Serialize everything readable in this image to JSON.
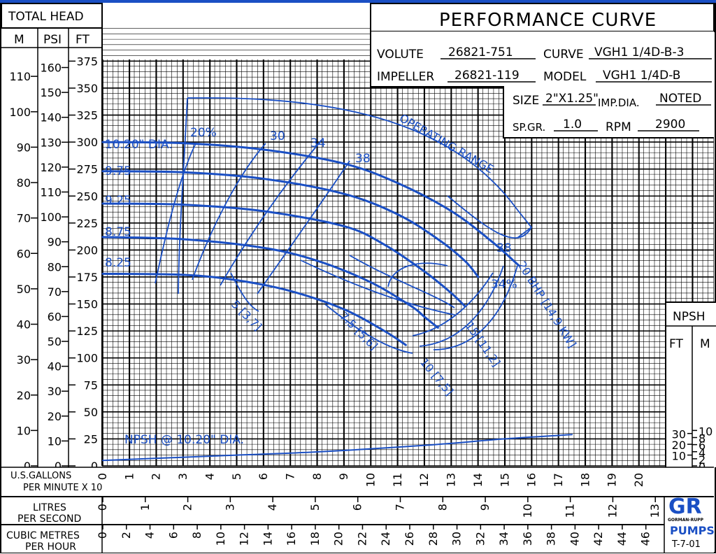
{
  "header": {
    "total_head": "TOTAL HEAD",
    "units": [
      "M",
      "PSI",
      "FT"
    ],
    "title": "PERFORMANCE CURVE",
    "volute_label": "VOLUTE",
    "volute": "26821-751",
    "curve_label": "CURVE",
    "curve": "VGH1 1/4D-B-3",
    "impeller_label": "IMPELLER",
    "impeller": "26821-119",
    "model_label": "MODEL",
    "model": "VGH1 1/4D-B",
    "size_label": "SIZE",
    "size": "2\"X1.25\"",
    "imp_dia_label": "IMP.DIA.",
    "imp_dia": "NOTED",
    "spgr_label": "SP.GR.",
    "spgr": "1.0",
    "rpm_label": "RPM",
    "rpm": "2900",
    "npsh_box": "NPSH",
    "npsh_units": [
      "FT",
      "M"
    ],
    "logo": "GR",
    "logo_sub": "GORMAN-RUPP",
    "logo_pumps": "PUMPS",
    "logo_code": "T-7-01"
  },
  "axes": {
    "gpm_label": "U.S.GALLONS\nPER MINUTE  X 10",
    "gpm_label_1": "U.S.GALLONS",
    "gpm_label_2": "PER MINUTE  X 10",
    "lps_label_1": "LITRES",
    "lps_label_2": "PER SECOND",
    "m3h_label_1": "CUBIC METRES",
    "m3h_label_2": "PER HOUR",
    "gpm_ticks": [
      "0",
      "1",
      "2",
      "3",
      "4",
      "5",
      "6",
      "7",
      "8",
      "9",
      "10",
      "11",
      "12",
      "13",
      "14",
      "15",
      "16",
      "17",
      "18",
      "19",
      "20"
    ],
    "lps_ticks": [
      "0",
      "1",
      "2",
      "3",
      "4",
      "5",
      "6",
      "7",
      "8",
      "9",
      "10",
      "11",
      "12",
      "13"
    ],
    "m3h_ticks": [
      "0",
      "2",
      "4",
      "6",
      "8",
      "10",
      "12",
      "14",
      "16",
      "18",
      "20",
      "22",
      "24",
      "26",
      "28",
      "30",
      "32",
      "34",
      "36",
      "38",
      "40",
      "42",
      "44",
      "46"
    ],
    "ft_ticks": [
      "0",
      "25",
      "50",
      "75",
      "100",
      "125",
      "150",
      "175",
      "200",
      "225",
      "250",
      "275",
      "300",
      "325",
      "350",
      "375"
    ],
    "psi_ticks": [
      "0",
      "10",
      "20",
      "30",
      "40",
      "50",
      "60",
      "70",
      "80",
      "90",
      "100",
      "110",
      "120",
      "130",
      "140",
      "150",
      "160"
    ],
    "m_ticks": [
      "0",
      "10",
      "20",
      "30",
      "40",
      "50",
      "60",
      "70",
      "80",
      "90",
      "100",
      "110"
    ],
    "npsh_ft_ticks": [
      "10",
      "20",
      "30"
    ],
    "npsh_m_ticks": [
      "0",
      "2",
      "4",
      "6",
      "8",
      "10"
    ]
  },
  "chart_data": {
    "type": "line",
    "title": "PERFORMANCE CURVE",
    "xlabel": "U.S.GALLONS PER MINUTE X 10",
    "ylabel": "TOTAL HEAD FT",
    "xlim": [
      0,
      22
    ],
    "ylim": [
      0,
      375
    ],
    "grid": true,
    "series": [
      {
        "name": "10.20\" DIA.",
        "points": [
          [
            0,
            300
          ],
          [
            3,
            299
          ],
          [
            6,
            293
          ],
          [
            9,
            280
          ],
          [
            11,
            262
          ],
          [
            13,
            236
          ],
          [
            14.5,
            208
          ],
          [
            15.5,
            186
          ]
        ]
      },
      {
        "name": "9.75",
        "points": [
          [
            0,
            273
          ],
          [
            3,
            272
          ],
          [
            6,
            266
          ],
          [
            9,
            252
          ],
          [
            11,
            233
          ],
          [
            12.5,
            210
          ],
          [
            13.5,
            190
          ],
          [
            14,
            175
          ]
        ]
      },
      {
        "name": "9.25",
        "points": [
          [
            0,
            243
          ],
          [
            3,
            242
          ],
          [
            6,
            236
          ],
          [
            9,
            222
          ],
          [
            10.5,
            205
          ],
          [
            12,
            180
          ],
          [
            13,
            160
          ],
          [
            13.5,
            148
          ]
        ]
      },
      {
        "name": "8.75",
        "points": [
          [
            0,
            212
          ],
          [
            3,
            210
          ],
          [
            6,
            202
          ],
          [
            8,
            190
          ],
          [
            10,
            170
          ],
          [
            11.5,
            148
          ],
          [
            12,
            138
          ],
          [
            12.5,
            128
          ]
        ]
      },
      {
        "name": "8.25",
        "points": [
          [
            0,
            178
          ],
          [
            3,
            177
          ],
          [
            5,
            172
          ],
          [
            7,
            162
          ],
          [
            9,
            145
          ],
          [
            10.5,
            125
          ],
          [
            11.3,
            112
          ]
        ]
      },
      {
        "name": "NPSH @ 10.20\" DIA.",
        "points": [
          [
            0,
            5
          ],
          [
            4,
            9
          ],
          [
            8,
            13
          ],
          [
            12,
            19
          ],
          [
            15,
            25
          ],
          [
            17.5,
            29
          ]
        ]
      }
    ],
    "efficiency_labels": [
      "20%",
      "30",
      "34",
      "38",
      "38",
      "34%"
    ],
    "bhp_labels": [
      "5 [3,7]",
      "7.5 [5,6]",
      "10 [7,5]",
      "15 [11,2]",
      "20 BHP [14,9 KW]"
    ],
    "annotations": [
      "OPERATING RANGE"
    ]
  }
}
